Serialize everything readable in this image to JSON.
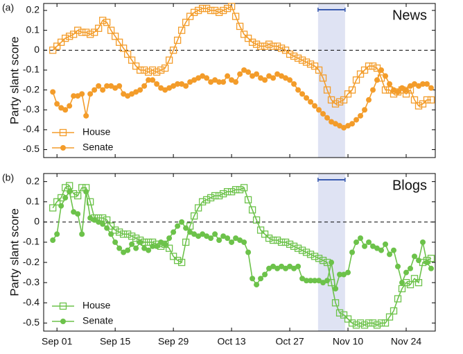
{
  "chart_data": [
    {
      "type": "line",
      "panel_label": "(a)",
      "title": "News",
      "y_label": "Party slant score",
      "legend": "lower left",
      "zero_line": true,
      "highlight": [
        62.8,
        69.3
      ],
      "show_xtick_labels": false,
      "xlim": [
        -3.2,
        91
      ],
      "ylim": [
        -0.54,
        0.235
      ],
      "xticks": [
        0,
        14,
        28,
        42,
        56,
        70,
        84
      ],
      "yticks": [
        0.2,
        0.1,
        0,
        -0.1,
        -0.2,
        -0.3,
        -0.4,
        -0.5
      ],
      "x": [
        -1,
        0,
        1,
        2,
        3,
        4,
        5,
        6,
        7,
        8,
        9,
        10,
        11,
        12,
        13,
        14,
        15,
        16,
        17,
        18,
        19,
        20,
        21,
        22,
        23,
        24,
        25,
        26,
        27,
        28,
        29,
        30,
        31,
        32,
        33,
        34,
        35,
        36,
        37,
        38,
        39,
        40,
        41,
        42,
        43,
        44,
        45,
        46,
        47,
        48,
        49,
        50,
        51,
        52,
        53,
        54,
        55,
        56,
        57,
        58,
        59,
        60,
        61,
        62,
        63,
        64,
        65,
        66,
        67,
        68,
        69,
        70,
        71,
        72,
        73,
        74,
        75,
        76,
        77,
        78,
        79,
        80,
        81,
        82,
        83,
        84,
        85,
        86,
        87,
        88,
        89,
        90
      ],
      "series": [
        {
          "name": "House",
          "color": "#f39c2a",
          "marker": "square",
          "values": [
            0.0,
            0.02,
            0.04,
            0.06,
            0.07,
            0.08,
            0.1,
            0.09,
            0.09,
            0.08,
            0.09,
            0.11,
            0.15,
            0.14,
            0.1,
            0.07,
            0.04,
            0.01,
            -0.02,
            -0.05,
            -0.08,
            -0.1,
            -0.1,
            -0.11,
            -0.1,
            -0.11,
            -0.1,
            -0.09,
            -0.05,
            0.0,
            0.05,
            0.1,
            0.14,
            0.17,
            0.19,
            0.2,
            0.21,
            0.21,
            0.2,
            0.2,
            0.19,
            0.2,
            0.21,
            0.22,
            0.17,
            0.12,
            0.08,
            0.06,
            0.04,
            0.03,
            0.02,
            0.02,
            0.03,
            0.02,
            0.02,
            0.01,
            0.0,
            -0.02,
            -0.03,
            -0.04,
            -0.05,
            -0.06,
            -0.07,
            -0.08,
            -0.1,
            -0.14,
            -0.2,
            -0.25,
            -0.27,
            -0.26,
            -0.25,
            -0.22,
            -0.2,
            -0.15,
            -0.12,
            -0.1,
            -0.08,
            -0.08,
            -0.09,
            -0.14,
            -0.2,
            -0.2,
            -0.22,
            -0.21,
            -0.2,
            -0.22,
            -0.2,
            -0.25,
            -0.28,
            -0.27,
            -0.25,
            -0.25
          ]
        },
        {
          "name": "Senate",
          "color": "#f39c2a",
          "marker": "circle",
          "values": [
            -0.21,
            -0.27,
            -0.29,
            -0.3,
            -0.28,
            -0.23,
            -0.23,
            -0.22,
            -0.33,
            -0.22,
            -0.2,
            -0.18,
            -0.2,
            -0.18,
            -0.18,
            -0.19,
            -0.18,
            -0.22,
            -0.23,
            -0.22,
            -0.21,
            -0.2,
            -0.18,
            -0.15,
            -0.15,
            -0.17,
            -0.19,
            -0.2,
            -0.19,
            -0.18,
            -0.17,
            -0.17,
            -0.18,
            -0.16,
            -0.15,
            -0.14,
            -0.13,
            -0.14,
            -0.16,
            -0.15,
            -0.16,
            -0.16,
            -0.13,
            -0.15,
            -0.16,
            -0.12,
            -0.1,
            -0.11,
            -0.13,
            -0.12,
            -0.14,
            -0.15,
            -0.13,
            -0.14,
            -0.12,
            -0.13,
            -0.14,
            -0.15,
            -0.17,
            -0.2,
            -0.22,
            -0.24,
            -0.26,
            -0.28,
            -0.3,
            -0.32,
            -0.34,
            -0.36,
            -0.37,
            -0.38,
            -0.39,
            -0.38,
            -0.37,
            -0.35,
            -0.33,
            -0.3,
            -0.25,
            -0.2,
            -0.15,
            -0.1,
            -0.13,
            -0.17,
            -0.2,
            -0.21,
            -0.19,
            -0.2,
            -0.18,
            -0.17,
            -0.18,
            -0.17,
            -0.17,
            -0.19
          ]
        }
      ]
    },
    {
      "type": "line",
      "panel_label": "(b)",
      "title": "Blogs",
      "y_label": "Party slant score",
      "legend": "lower left",
      "zero_line": true,
      "highlight": [
        62.8,
        69.3
      ],
      "show_xtick_labels": true,
      "xlim": [
        -3.2,
        91
      ],
      "ylim": [
        -0.54,
        0.24
      ],
      "xticks": [
        {
          "value": 0,
          "label": "Sep 01"
        },
        {
          "value": 14,
          "label": "Sep 15"
        },
        {
          "value": 28,
          "label": "Sep 29"
        },
        {
          "value": 42,
          "label": "Oct 13"
        },
        {
          "value": 56,
          "label": "Oct 27"
        },
        {
          "value": 70,
          "label": "Nov 10"
        },
        {
          "value": 84,
          "label": "Nov 24"
        }
      ],
      "yticks": [
        0.2,
        0.1,
        0,
        -0.1,
        -0.2,
        -0.3,
        -0.4,
        -0.5
      ],
      "x": [
        -1,
        0,
        1,
        2,
        3,
        4,
        5,
        6,
        7,
        8,
        9,
        10,
        11,
        12,
        13,
        14,
        15,
        16,
        17,
        18,
        19,
        20,
        21,
        22,
        23,
        24,
        25,
        26,
        27,
        28,
        29,
        30,
        31,
        32,
        33,
        34,
        35,
        36,
        37,
        38,
        39,
        40,
        41,
        42,
        43,
        44,
        45,
        46,
        47,
        48,
        49,
        50,
        51,
        52,
        53,
        54,
        55,
        56,
        57,
        58,
        59,
        60,
        61,
        62,
        63,
        64,
        65,
        66,
        67,
        68,
        69,
        70,
        71,
        72,
        73,
        74,
        75,
        76,
        77,
        78,
        79,
        80,
        81,
        82,
        83,
        84,
        85,
        86,
        87,
        88,
        89,
        90
      ],
      "series": [
        {
          "name": "House",
          "color": "#6cc24a",
          "marker": "square",
          "values": [
            0.07,
            0.1,
            0.12,
            0.17,
            0.18,
            0.14,
            0.13,
            0.17,
            0.17,
            0.1,
            0.02,
            0.02,
            0.02,
            0.01,
            -0.02,
            -0.04,
            -0.05,
            -0.06,
            -0.06,
            -0.07,
            -0.08,
            -0.09,
            -0.1,
            -0.1,
            -0.1,
            -0.11,
            -0.12,
            -0.11,
            -0.13,
            -0.17,
            -0.19,
            -0.2,
            -0.1,
            -0.02,
            0.03,
            0.07,
            0.1,
            0.11,
            0.12,
            0.13,
            0.13,
            0.14,
            0.15,
            0.15,
            0.16,
            0.16,
            0.17,
            0.11,
            0.06,
            0.01,
            -0.04,
            -0.06,
            -0.08,
            -0.09,
            -0.09,
            -0.1,
            -0.1,
            -0.11,
            -0.12,
            -0.13,
            -0.14,
            -0.15,
            -0.16,
            -0.17,
            -0.18,
            -0.19,
            -0.2,
            -0.3,
            -0.4,
            -0.45,
            -0.46,
            -0.48,
            -0.5,
            -0.51,
            -0.5,
            -0.51,
            -0.5,
            -0.5,
            -0.51,
            -0.5,
            -0.5,
            -0.47,
            -0.44,
            -0.38,
            -0.33,
            -0.3,
            -0.31,
            -0.28,
            -0.3,
            -0.2,
            -0.19,
            -0.18
          ]
        },
        {
          "name": "Senate",
          "color": "#6cc24a",
          "marker": "circle",
          "values": [
            -0.09,
            -0.06,
            0.08,
            0.12,
            0.15,
            0.05,
            0.04,
            -0.06,
            0.15,
            0.02,
            0.01,
            0.0,
            -0.01,
            -0.03,
            -0.06,
            -0.1,
            -0.13,
            -0.15,
            -0.14,
            -0.11,
            -0.13,
            -0.1,
            -0.13,
            -0.14,
            -0.12,
            -0.12,
            -0.1,
            -0.11,
            -0.08,
            -0.05,
            -0.02,
            0.0,
            -0.03,
            -0.05,
            -0.06,
            -0.07,
            -0.06,
            -0.07,
            -0.08,
            -0.06,
            -0.09,
            -0.07,
            -0.08,
            -0.1,
            -0.08,
            -0.09,
            -0.1,
            -0.15,
            -0.28,
            -0.31,
            -0.28,
            -0.26,
            -0.23,
            -0.22,
            -0.23,
            -0.22,
            -0.23,
            -0.22,
            -0.23,
            -0.22,
            -0.28,
            -0.29,
            -0.29,
            -0.29,
            -0.29,
            -0.3,
            -0.29,
            -0.2,
            -0.33,
            -0.26,
            -0.26,
            -0.25,
            -0.15,
            -0.1,
            -0.08,
            -0.12,
            -0.1,
            -0.12,
            -0.13,
            -0.14,
            -0.11,
            -0.16,
            -0.14,
            -0.22,
            -0.3,
            -0.25,
            -0.23,
            -0.17,
            -0.19,
            -0.1,
            -0.2,
            -0.23
          ]
        }
      ]
    }
  ]
}
